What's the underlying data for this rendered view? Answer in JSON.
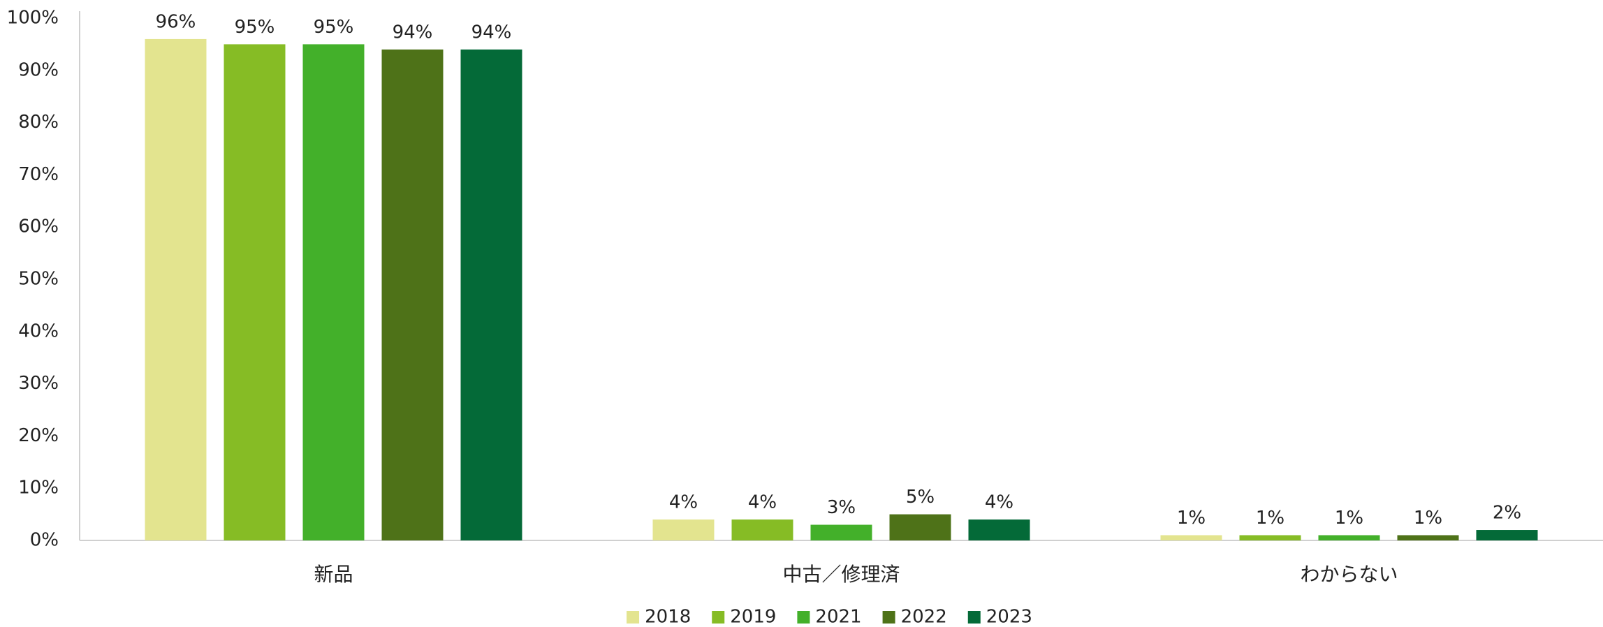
{
  "chart_data": {
    "type": "bar",
    "categories": [
      "新品",
      "中古／修理済",
      "わからない"
    ],
    "series": [
      {
        "name": "2018",
        "color": "#e3e48f",
        "values": [
          96,
          4,
          1
        ],
        "value_labels": [
          "96%",
          "4%",
          "1%"
        ]
      },
      {
        "name": "2019",
        "color": "#86bc25",
        "values": [
          95,
          4,
          1
        ],
        "value_labels": [
          "95%",
          "4%",
          "1%"
        ]
      },
      {
        "name": "2021",
        "color": "#43b02a",
        "values": [
          95,
          3,
          1
        ],
        "value_labels": [
          "95%",
          "3%",
          "1%"
        ]
      },
      {
        "name": "2022",
        "color": "#4e7218",
        "values": [
          94,
          5,
          1
        ],
        "value_labels": [
          "94%",
          "5%",
          "1%"
        ]
      },
      {
        "name": "2023",
        "color": "#046a38",
        "values": [
          94,
          4,
          2
        ],
        "value_labels": [
          "94%",
          "4%",
          "2%"
        ]
      }
    ],
    "ylim": [
      0,
      100
    ],
    "yticks": [
      {
        "value": 0,
        "label": "0%"
      },
      {
        "value": 10,
        "label": "10%"
      },
      {
        "value": 20,
        "label": "20%"
      },
      {
        "value": 30,
        "label": "30%"
      },
      {
        "value": 40,
        "label": "40%"
      },
      {
        "value": 50,
        "label": "50%"
      },
      {
        "value": 60,
        "label": "60%"
      },
      {
        "value": 70,
        "label": "70%"
      },
      {
        "value": 80,
        "label": "80%"
      },
      {
        "value": 90,
        "label": "90%"
      },
      {
        "value": 100,
        "label": "100%"
      }
    ],
    "legend": "bottom"
  }
}
